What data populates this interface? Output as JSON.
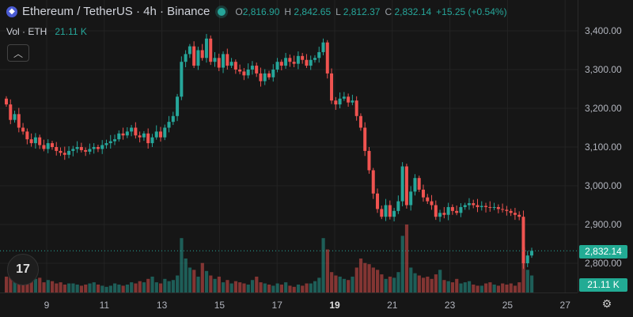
{
  "header": {
    "symbol": "Ethereum / TetherUS · 4h · Binance",
    "open_label": "O",
    "open": "2,816.90",
    "high_label": "H",
    "high": "2,842.65",
    "low_label": "L",
    "low": "2,812.37",
    "close_label": "C",
    "close": "2,832.14",
    "change": "+15.25 (+0.54%)"
  },
  "volume": {
    "label": "Vol · ETH",
    "value": "21.11 K"
  },
  "price_badge": "2,832.14",
  "volume_badge": "21.11 K",
  "colors": {
    "up": "#26a69a",
    "down": "#ef5350",
    "background": "#161616",
    "grid": "#232323"
  },
  "icons": {
    "logo": "ethereum-logo",
    "collapse": "chevron-up-icon",
    "tv": "tradingview-logo",
    "settings": "gear-icon"
  },
  "chart_data": {
    "type": "candlestick",
    "y_ticks": [
      "3,400.00",
      "3,300.00",
      "3,200.00",
      "3,100.00",
      "3,000.00",
      "2,900.00",
      "2,800.00"
    ],
    "x_ticks": [
      "9",
      "11",
      "13",
      "15",
      "17",
      "19",
      "21",
      "23",
      "25",
      "27"
    ],
    "x_tick_bold": "19",
    "ylim": [
      2780,
      3410
    ],
    "last_price": 2832.14,
    "closes": [
      3210,
      3170,
      3185,
      3150,
      3140,
      3120,
      3110,
      3125,
      3105,
      3095,
      3110,
      3100,
      3090,
      3085,
      3080,
      3090,
      3095,
      3100,
      3092,
      3088,
      3095,
      3100,
      3095,
      3105,
      3110,
      3115,
      3120,
      3135,
      3130,
      3140,
      3150,
      3130,
      3125,
      3135,
      3110,
      3125,
      3140,
      3125,
      3150,
      3165,
      3180,
      3230,
      3320,
      3340,
      3360,
      3310,
      3350,
      3330,
      3380,
      3320,
      3330,
      3305,
      3340,
      3310,
      3320,
      3300,
      3295,
      3285,
      3300,
      3310,
      3290,
      3270,
      3290,
      3280,
      3300,
      3320,
      3310,
      3330,
      3320,
      3315,
      3335,
      3325,
      3310,
      3325,
      3330,
      3345,
      3370,
      3290,
      3220,
      3210,
      3225,
      3230,
      3215,
      3220,
      3180,
      3150,
      3090,
      3040,
      2980,
      2940,
      2920,
      2950,
      2920,
      2935,
      2960,
      3050,
      2950,
      2985,
      3020,
      2990,
      2970,
      2960,
      2950,
      2920,
      2930,
      2925,
      2945,
      2935,
      2930,
      2945,
      2950,
      2955,
      2950,
      2945,
      2948,
      2945,
      2943,
      2945,
      2940,
      2938,
      2935,
      2930,
      2925,
      2920,
      2800,
      2820,
      2832
    ],
    "volumes": [
      14,
      16,
      15,
      19,
      12,
      11,
      10,
      12,
      13,
      9,
      11,
      10,
      8,
      9,
      7,
      8,
      8,
      7,
      6,
      7,
      8,
      9,
      7,
      6,
      5,
      6,
      8,
      7,
      6,
      7,
      9,
      8,
      10,
      9,
      12,
      14,
      9,
      8,
      12,
      10,
      11,
      15,
      48,
      30,
      22,
      20,
      14,
      26,
      19,
      15,
      12,
      14,
      9,
      11,
      8,
      10,
      9,
      8,
      7,
      11,
      14,
      9,
      8,
      7,
      6,
      8,
      7,
      9,
      6,
      5,
      7,
      6,
      8,
      8,
      10,
      13,
      48,
      38,
      18,
      15,
      14,
      12,
      11,
      14,
      22,
      30,
      26,
      25,
      22,
      20,
      16,
      12,
      14,
      13,
      18,
      50,
      60,
      22,
      17,
      15,
      13,
      14,
      12,
      16,
      20,
      11,
      10,
      9,
      12,
      8,
      9,
      10,
      7,
      6,
      6,
      8,
      9,
      7,
      6,
      8,
      7,
      8,
      6,
      9,
      40,
      20,
      15
    ]
  }
}
